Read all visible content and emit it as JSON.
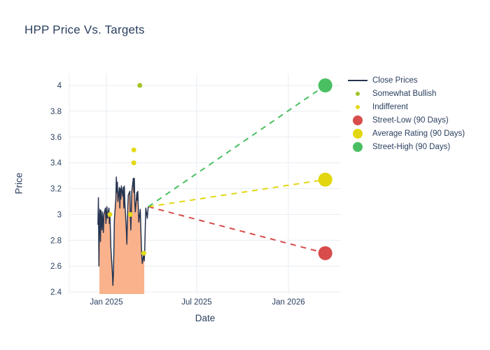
{
  "title": "HPP Price Vs. Targets",
  "colors": {
    "title_text": "#2a3f5f",
    "axis_text": "#2a3f5f",
    "grid": "#e8edf3",
    "close": "#263450",
    "close_fill": "#f9b28c",
    "somewhat_bullish": "#a4c427",
    "indifferent": "#e3d918",
    "street_low": "#d84c4b",
    "average_rating": "#e2d70f",
    "street_high": "#4abf62"
  },
  "legend": {
    "items": [
      {
        "key": "close",
        "label": "Close Prices",
        "marker": "line"
      },
      {
        "key": "somewhat_bullish",
        "label": "Somewhat Bullish",
        "marker": "dot-small"
      },
      {
        "key": "indifferent",
        "label": "Indifferent",
        "marker": "dot-small"
      },
      {
        "key": "street_low",
        "label": "Street-Low (90 Days)",
        "marker": "dot-large"
      },
      {
        "key": "average_rating",
        "label": "Average Rating (90 Days)",
        "marker": "dot-large"
      },
      {
        "key": "street_high",
        "label": "Street-High (90 Days)",
        "marker": "dot-large"
      }
    ]
  },
  "chart_data": {
    "type": "line",
    "title": "HPP Price Vs. Targets",
    "xlabel": "Date",
    "ylabel": "Price",
    "ylim": [
      2.38,
      4.1
    ],
    "grid": true,
    "legend_position": "right",
    "y_ticks": [
      {
        "label": "4",
        "value": 4.0
      },
      {
        "label": "3.8",
        "value": 3.8
      },
      {
        "label": "3.6",
        "value": 3.6
      },
      {
        "label": "3.4",
        "value": 3.4
      },
      {
        "label": "3.2",
        "value": 3.2
      },
      {
        "label": "3",
        "value": 3.0
      },
      {
        "label": "2.8",
        "value": 2.8
      },
      {
        "label": "2.6",
        "value": 2.6
      },
      {
        "label": "2.4",
        "value": 2.4
      }
    ],
    "x_ticks": [
      {
        "label": "Jan 2025",
        "date": "2025-01-01"
      },
      {
        "label": "Jul 2025",
        "date": "2025-07-01"
      },
      {
        "label": "Jan 2026",
        "date": "2026-01-01"
      }
    ],
    "series": [
      {
        "key": "close",
        "name": "Close Prices",
        "type": "line",
        "fill_x_range": [
          "2024-12-18",
          "2025-03-18"
        ],
        "points": [
          [
            "2024-12-15",
            2.92
          ],
          [
            "2024-12-16",
            3.13
          ],
          [
            "2024-12-17",
            2.6
          ],
          [
            "2024-12-18",
            2.96
          ],
          [
            "2024-12-19",
            3.04
          ],
          [
            "2024-12-20",
            2.79
          ],
          [
            "2024-12-21",
            3.03
          ],
          [
            "2024-12-23",
            2.88
          ],
          [
            "2024-12-24",
            3.02
          ],
          [
            "2024-12-26",
            2.86
          ],
          [
            "2024-12-27",
            3.0
          ],
          [
            "2024-12-30",
            3.05
          ],
          [
            "2024-12-31",
            2.93
          ],
          [
            "2025-01-02",
            3.06
          ],
          [
            "2025-01-03",
            2.97
          ],
          [
            "2025-01-06",
            3.05
          ],
          [
            "2025-01-07",
            2.93
          ],
          [
            "2025-01-08",
            3.0
          ],
          [
            "2025-01-09",
            2.88
          ],
          [
            "2025-01-10",
            2.74
          ],
          [
            "2025-01-13",
            2.55
          ],
          [
            "2025-01-14",
            2.45
          ],
          [
            "2025-01-15",
            2.53
          ],
          [
            "2025-01-16",
            2.72
          ],
          [
            "2025-01-17",
            2.96
          ],
          [
            "2025-01-20",
            3.12
          ],
          [
            "2025-01-21",
            3.29
          ],
          [
            "2025-01-22",
            3.17
          ],
          [
            "2025-01-23",
            3.25
          ],
          [
            "2025-01-24",
            3.1
          ],
          [
            "2025-01-27",
            3.21
          ],
          [
            "2025-01-28",
            3.05
          ],
          [
            "2025-01-29",
            3.2
          ],
          [
            "2025-01-30",
            3.12
          ],
          [
            "2025-01-31",
            3.22
          ],
          [
            "2025-02-03",
            3.14
          ],
          [
            "2025-02-04",
            3.21
          ],
          [
            "2025-02-05",
            3.05
          ],
          [
            "2025-02-06",
            3.22
          ],
          [
            "2025-02-07",
            3.09
          ],
          [
            "2025-02-10",
            2.88
          ],
          [
            "2025-02-11",
            2.77
          ],
          [
            "2025-02-12",
            2.93
          ],
          [
            "2025-02-13",
            3.06
          ],
          [
            "2025-02-14",
            3.15
          ],
          [
            "2025-02-17",
            3.18
          ],
          [
            "2025-02-18",
            3.0
          ],
          [
            "2025-02-19",
            2.88
          ],
          [
            "2025-02-20",
            3.03
          ],
          [
            "2025-02-21",
            3.18
          ],
          [
            "2025-02-24",
            3.28
          ],
          [
            "2025-02-25",
            3.17
          ],
          [
            "2025-02-26",
            3.28
          ],
          [
            "2025-02-27",
            3.09
          ],
          [
            "2025-02-28",
            3.02
          ],
          [
            "2025-03-03",
            3.17
          ],
          [
            "2025-03-04",
            3.11
          ],
          [
            "2025-03-05",
            3.18
          ],
          [
            "2025-03-06",
            3.04
          ],
          [
            "2025-03-07",
            2.94
          ],
          [
            "2025-03-10",
            3.04
          ],
          [
            "2025-03-11",
            2.89
          ],
          [
            "2025-03-12",
            2.77
          ],
          [
            "2025-03-13",
            2.67
          ],
          [
            "2025-03-14",
            2.62
          ],
          [
            "2025-03-17",
            2.7
          ],
          [
            "2025-03-18",
            2.64
          ],
          [
            "2025-03-19",
            2.73
          ],
          [
            "2025-03-20",
            2.91
          ],
          [
            "2025-03-21",
            3.05
          ],
          [
            "2025-03-24",
            2.97
          ],
          [
            "2025-03-25",
            3.02
          ],
          [
            "2025-03-26",
            3.06
          ]
        ]
      },
      {
        "key": "somewhat_bullish",
        "name": "Somewhat Bullish",
        "type": "scatter",
        "marker_size": 7,
        "points": [
          [
            "2025-03-09",
            4.0
          ]
        ]
      },
      {
        "key": "indifferent",
        "name": "Indifferent",
        "type": "scatter",
        "marker_size": 7,
        "points": [
          [
            "2025-01-08",
            3.0
          ],
          [
            "2025-02-18",
            3.0
          ],
          [
            "2025-02-25",
            3.5
          ],
          [
            "2025-02-25",
            3.4
          ],
          [
            "2025-03-17",
            2.7
          ]
        ]
      },
      {
        "key": "street_low",
        "name": "Street-Low (90 Days)",
        "type": "projection",
        "from": [
          "2025-03-26",
          3.06
        ],
        "to": [
          "2026-03-16",
          2.7
        ],
        "marker_size": 20
      },
      {
        "key": "average_rating",
        "name": "Average Rating (90 Days)",
        "type": "projection",
        "from": [
          "2025-03-26",
          3.06
        ],
        "to": [
          "2026-03-16",
          3.27
        ],
        "marker_size": 20
      },
      {
        "key": "street_high",
        "name": "Street-High (90 Days)",
        "type": "projection",
        "from": [
          "2025-03-26",
          3.06
        ],
        "to": [
          "2026-03-16",
          4.0
        ],
        "marker_size": 20
      }
    ]
  }
}
